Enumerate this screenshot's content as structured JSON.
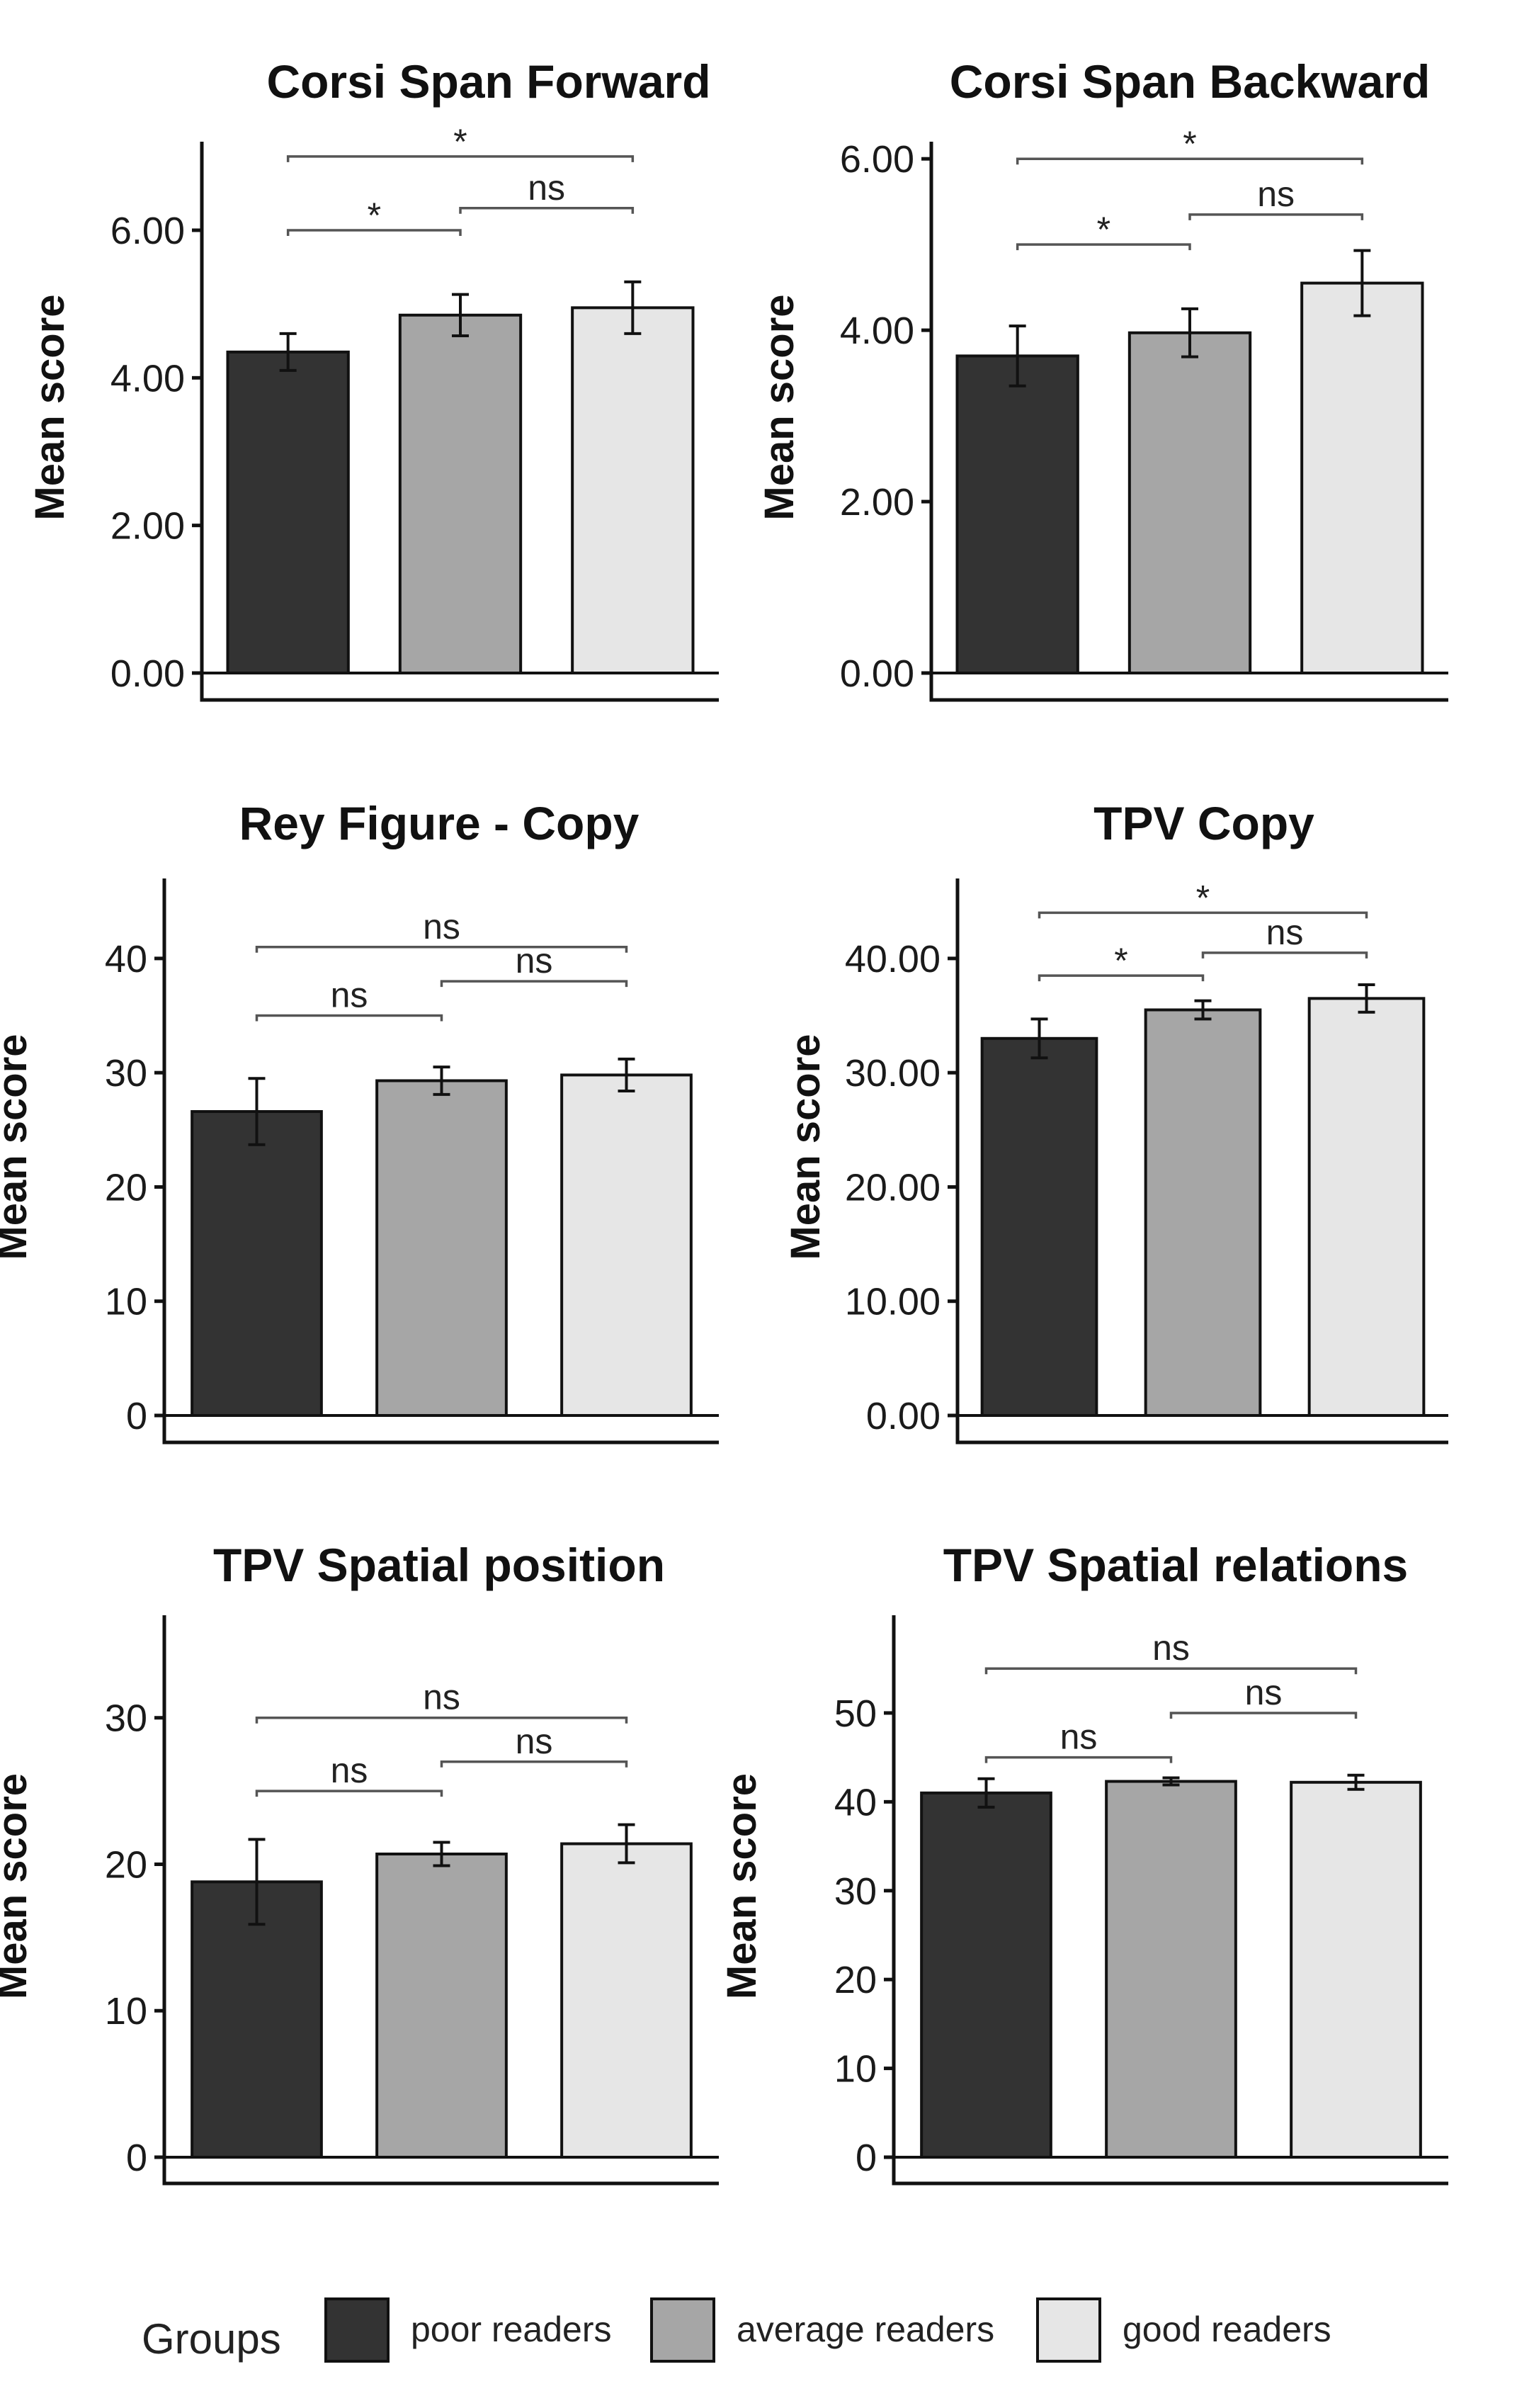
{
  "chart_data": [
    {
      "type": "bar",
      "title": "Corsi Span Forward",
      "ylabel": "Mean score",
      "categories": [
        "poor readers",
        "average readers",
        "good readers"
      ],
      "values": [
        4.35,
        4.85,
        4.95
      ],
      "errors": [
        0.25,
        0.28,
        0.35
      ],
      "ylim": [
        0,
        7.2
      ],
      "ticks": [
        0,
        2,
        4,
        6
      ],
      "tick_labels": [
        "0.00",
        "2.00",
        "4.00",
        "6.00"
      ],
      "comparisons": [
        {
          "from": 0,
          "to": 2,
          "level": 7.0,
          "label": "*"
        },
        {
          "from": 0,
          "to": 1,
          "level": 6.0,
          "label": "*"
        },
        {
          "from": 1,
          "to": 2,
          "level": 6.3,
          "label": "ns"
        }
      ]
    },
    {
      "type": "bar",
      "title": "Corsi Span Backward",
      "ylabel": "Mean score",
      "categories": [
        "poor readers",
        "average readers",
        "good readers"
      ],
      "values": [
        3.7,
        3.97,
        4.55
      ],
      "errors": [
        0.35,
        0.28,
        0.38
      ],
      "ylim": [
        0,
        6.2
      ],
      "ticks": [
        0,
        2,
        4,
        6
      ],
      "tick_labels": [
        "0.00",
        "2.00",
        "4.00",
        "6.00"
      ],
      "comparisons": [
        {
          "from": 0,
          "to": 2,
          "level": 6.0,
          "label": "*"
        },
        {
          "from": 0,
          "to": 1,
          "level": 5.0,
          "label": "*"
        },
        {
          "from": 1,
          "to": 2,
          "level": 5.35,
          "label": "ns"
        }
      ]
    },
    {
      "type": "bar",
      "title": "Rey Figure - Copy",
      "ylabel": "Mean score",
      "categories": [
        "poor readers",
        "average readers",
        "good readers"
      ],
      "values": [
        26.6,
        29.3,
        29.8
      ],
      "errors": [
        2.9,
        1.2,
        1.4
      ],
      "ylim": [
        0,
        47
      ],
      "ticks": [
        0,
        10,
        20,
        30,
        40
      ],
      "tick_labels": [
        "0",
        "10",
        "20",
        "30",
        "40"
      ],
      "comparisons": [
        {
          "from": 0,
          "to": 2,
          "level": 41,
          "label": "ns"
        },
        {
          "from": 0,
          "to": 1,
          "level": 35,
          "label": "ns"
        },
        {
          "from": 1,
          "to": 2,
          "level": 38,
          "label": "ns"
        }
      ]
    },
    {
      "type": "bar",
      "title": "TPV Copy",
      "ylabel": "Mean score",
      "categories": [
        "poor readers",
        "average readers",
        "good readers"
      ],
      "values": [
        33.0,
        35.5,
        36.5
      ],
      "errors": [
        1.7,
        0.8,
        1.2
      ],
      "ylim": [
        0,
        47
      ],
      "ticks": [
        0,
        10,
        20,
        30,
        40
      ],
      "tick_labels": [
        "0.00",
        "10.00",
        "20.00",
        "30.00",
        "40.00"
      ],
      "comparisons": [
        {
          "from": 0,
          "to": 2,
          "level": 44,
          "label": "*"
        },
        {
          "from": 0,
          "to": 1,
          "level": 38.5,
          "label": "*"
        },
        {
          "from": 1,
          "to": 2,
          "level": 40.5,
          "label": "ns"
        }
      ]
    },
    {
      "type": "bar",
      "title": "TPV Spatial position",
      "ylabel": "Mean score",
      "categories": [
        "poor readers",
        "average readers",
        "good readers"
      ],
      "values": [
        18.8,
        20.7,
        21.4
      ],
      "errors": [
        2.9,
        0.8,
        1.3
      ],
      "ylim": [
        0,
        37
      ],
      "ticks": [
        0,
        10,
        20,
        30
      ],
      "tick_labels": [
        "0",
        "10",
        "20",
        "30"
      ],
      "comparisons": [
        {
          "from": 0,
          "to": 2,
          "level": 30,
          "label": "ns"
        },
        {
          "from": 0,
          "to": 1,
          "level": 25,
          "label": "ns"
        },
        {
          "from": 1,
          "to": 2,
          "level": 27,
          "label": "ns"
        }
      ]
    },
    {
      "type": "bar",
      "title": "TPV Spatial relations",
      "ylabel": "Mean score",
      "categories": [
        "poor readers",
        "average readers",
        "good readers"
      ],
      "values": [
        41.0,
        42.3,
        42.2
      ],
      "errors": [
        1.6,
        0.4,
        0.8
      ],
      "ylim": [
        0,
        61
      ],
      "ticks": [
        0,
        10,
        20,
        30,
        40,
        50
      ],
      "tick_labels": [
        "0",
        "10",
        "20",
        "30",
        "40",
        "50"
      ],
      "comparisons": [
        {
          "from": 0,
          "to": 2,
          "level": 55,
          "label": "ns"
        },
        {
          "from": 0,
          "to": 1,
          "level": 45,
          "label": "ns"
        },
        {
          "from": 1,
          "to": 2,
          "level": 50,
          "label": "ns"
        }
      ]
    }
  ],
  "legend": {
    "title": "Groups",
    "items": [
      {
        "label": "poor readers",
        "color": "#333333"
      },
      {
        "label": "average readers",
        "color": "#a6a6a6"
      },
      {
        "label": "good readers",
        "color": "#e6e6e6"
      }
    ]
  }
}
